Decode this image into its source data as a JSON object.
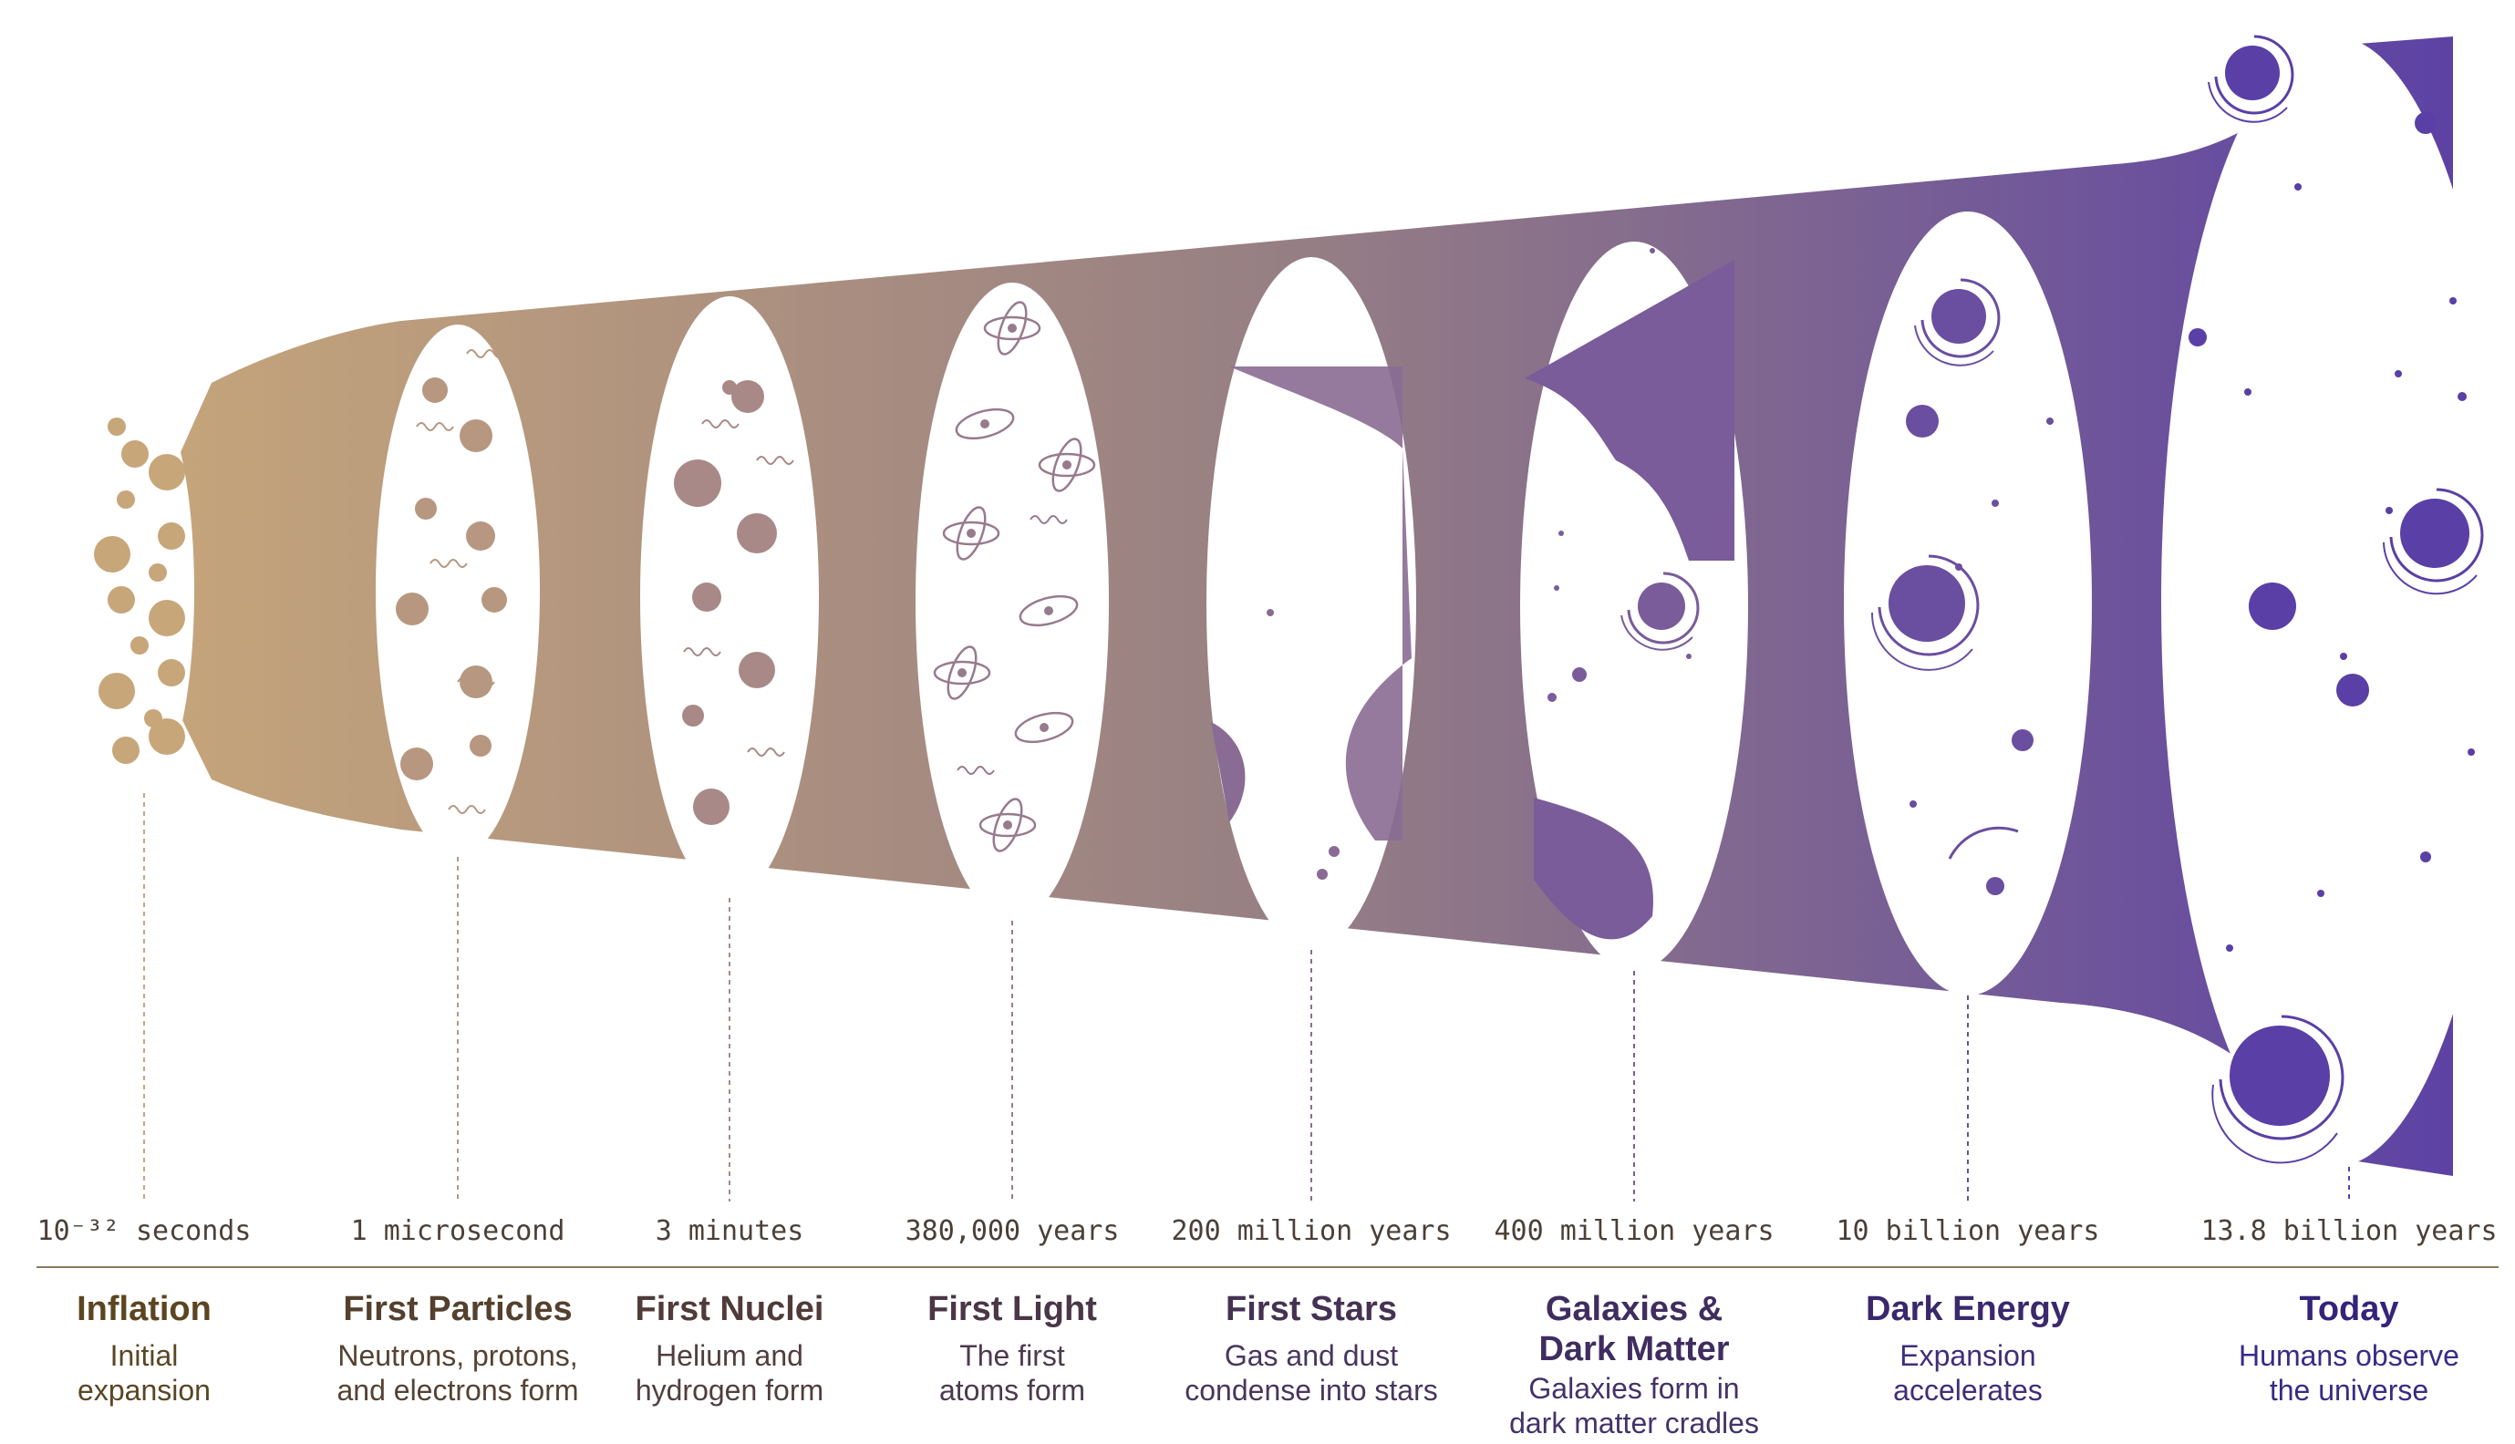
{
  "colors": {
    "start": "#c7a67a",
    "middle": "#957e84",
    "end": "#5a3fa6",
    "axis_line": "#8a7a5c",
    "early_title": "#5b4520",
    "late_title": "#34237a"
  },
  "eras": [
    {
      "time": "10⁻³² seconds",
      "title_lines": [
        "Inflation"
      ],
      "desc_lines": [
        "Initial",
        "expansion"
      ],
      "icon": "inflation-blobs-icon"
    },
    {
      "time": "1 microsecond",
      "title_lines": [
        "First Particles"
      ],
      "desc_lines": [
        "Neutrons, protons,",
        "and electrons form"
      ],
      "icon": "particles-icon"
    },
    {
      "time": "3 minutes",
      "title_lines": [
        "First Nuclei"
      ],
      "desc_lines": [
        "Helium and",
        "hydrogen form"
      ],
      "icon": "nuclei-icon"
    },
    {
      "time": "380,000 years",
      "title_lines": [
        "First Light"
      ],
      "desc_lines": [
        "The first",
        "atoms form"
      ],
      "icon": "atom-icon"
    },
    {
      "time": "200 million years",
      "title_lines": [
        "First Stars"
      ],
      "desc_lines": [
        "Gas and dust",
        "condense into stars"
      ],
      "icon": "gas-cloud-icon"
    },
    {
      "time": "400 million years",
      "title_lines": [
        "Galaxies &",
        "Dark Matter"
      ],
      "desc_lines": [
        "Galaxies form in",
        "dark matter cradles"
      ],
      "icon": "galaxy-icon"
    },
    {
      "time": "10 billion years",
      "title_lines": [
        "Dark Energy"
      ],
      "desc_lines": [
        "Expansion",
        "accelerates"
      ],
      "icon": "spiral-galaxy-icon"
    },
    {
      "time": "13.8 billion years",
      "title_lines": [
        "Today"
      ],
      "desc_lines": [
        "Humans observe",
        "the universe"
      ],
      "icon": "universe-today-icon"
    }
  ]
}
